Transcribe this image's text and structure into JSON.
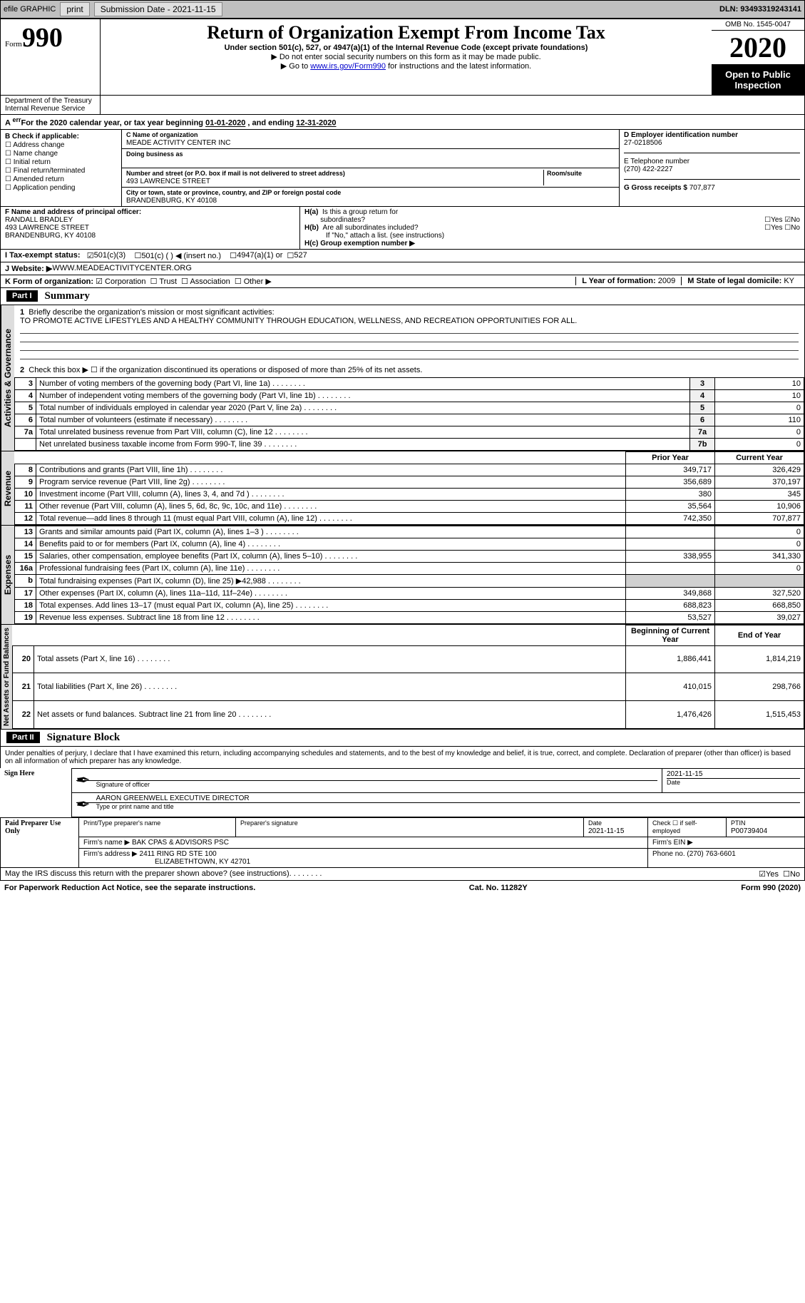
{
  "topbar": {
    "efile": "efile GRAPHIC",
    "print": "print",
    "subdate_label": "Submission Date - ",
    "subdate": "2021-11-15",
    "dln_label": "DLN: ",
    "dln": "93493319243141"
  },
  "header": {
    "form_prefix": "Form",
    "form_no": "990",
    "title": "Return of Organization Exempt From Income Tax",
    "subtitle": "Under section 501(c), 527, or 4947(a)(1) of the Internal Revenue Code (except private foundations)",
    "note1": "▶ Do not enter social security numbers on this form as it may be made public.",
    "note2_pre": "▶ Go to ",
    "note2_link": "www.irs.gov/Form990",
    "note2_post": " for instructions and the latest information.",
    "omb": "OMB No. 1545-0047",
    "year": "2020",
    "open": "Open to Public Inspection",
    "dept": "Department of the Treasury\nInternal Revenue Service"
  },
  "period": {
    "text_a": "For the 2020 calendar year, or tax year beginning ",
    "begin": "01-01-2020",
    "mid": " , and ending ",
    "end": "12-31-2020"
  },
  "colB": {
    "heading": "B Check if applicable:",
    "items": [
      "Address change",
      "Name change",
      "Initial return",
      "Final return/terminated",
      "Amended return",
      "Application pending"
    ]
  },
  "colC": {
    "name_label": "C Name of organization",
    "name": "MEADE ACTIVITY CENTER INC",
    "dba_label": "Doing business as",
    "street_label": "Number and street (or P.O. box if mail is not delivered to street address)",
    "room_label": "Room/suite",
    "street": "493 LAWRENCE STREET",
    "city_label": "City or town, state or province, country, and ZIP or foreign postal code",
    "city": "BRANDENBURG, KY  40108"
  },
  "colD": {
    "ein_label": "D Employer identification number",
    "ein": "27-0218506",
    "phone_label": "E Telephone number",
    "phone": "(270) 422-2227",
    "gross_label": "G Gross receipts $ ",
    "gross": "707,877"
  },
  "sectionF": {
    "label": "F  Name and address of principal officer:",
    "name": "RANDALL BRADLEY",
    "street": "493 LAWRENCE STREET",
    "city": "BRANDENBURG, KY  40108"
  },
  "sectionH": {
    "ha_label": "H(a)  Is this a group return for subordinates?",
    "hb_label": "H(b)  Are all subordinates included?",
    "hb_note": "If \"No,\" attach a list. (see instructions)",
    "hc_label": "H(c)  Group exemption number ▶",
    "yes": "Yes",
    "no": "No"
  },
  "sectionI": {
    "label": "I     Tax-exempt status:",
    "c3": "501(c)(3)",
    "c": "501(c) (  ) ◀ (insert no.)",
    "a1": "4947(a)(1) or",
    "s527": "527"
  },
  "sectionJ": {
    "label": "J    Website: ▶ ",
    "value": "WWW.MEADEACTIVITYCENTER.ORG"
  },
  "sectionK": {
    "label": "K Form of organization:",
    "corp": "Corporation",
    "trust": "Trust",
    "assoc": "Association",
    "other": "Other ▶"
  },
  "sectionL": {
    "label": "L Year of formation: ",
    "value": "2009"
  },
  "sectionM": {
    "label": "M State of legal domicile: ",
    "value": "KY"
  },
  "partI": {
    "num": "Part I",
    "title": "Summary",
    "line1_label": "Briefly describe the organization's mission or most significant activities:",
    "mission": "TO PROMOTE ACTIVE LIFESTYLES AND A HEALTHY COMMUNITY THROUGH EDUCATION, WELLNESS, AND RECREATION OPPORTUNITIES FOR ALL.",
    "line2": "Check this box ▶ ☐  if the organization discontinued its operations or disposed of more than 25% of its net assets.",
    "vtab_gov": "Activities & Governance",
    "vtab_rev": "Revenue",
    "vtab_exp": "Expenses",
    "vtab_net": "Net Assets or Fund Balances",
    "prior_year": "Prior Year",
    "current_year": "Current Year",
    "beg_year": "Beginning of Current Year",
    "end_year": "End of Year",
    "rows_gov": [
      {
        "n": "3",
        "d": "Number of voting members of the governing body (Part VI, line 1a)",
        "idx": "3",
        "v": "10"
      },
      {
        "n": "4",
        "d": "Number of independent voting members of the governing body (Part VI, line 1b)",
        "idx": "4",
        "v": "10"
      },
      {
        "n": "5",
        "d": "Total number of individuals employed in calendar year 2020 (Part V, line 2a)",
        "idx": "5",
        "v": "0"
      },
      {
        "n": "6",
        "d": "Total number of volunteers (estimate if necessary)",
        "idx": "6",
        "v": "110"
      },
      {
        "n": "7a",
        "d": "Total unrelated business revenue from Part VIII, column (C), line 12",
        "idx": "7a",
        "v": "0"
      },
      {
        "n": "",
        "d": "Net unrelated business taxable income from Form 990-T, line 39",
        "idx": "7b",
        "v": "0"
      }
    ],
    "rows_rev": [
      {
        "n": "8",
        "d": "Contributions and grants (Part VIII, line 1h)",
        "py": "349,717",
        "cy": "326,429"
      },
      {
        "n": "9",
        "d": "Program service revenue (Part VIII, line 2g)",
        "py": "356,689",
        "cy": "370,197"
      },
      {
        "n": "10",
        "d": "Investment income (Part VIII, column (A), lines 3, 4, and 7d )",
        "py": "380",
        "cy": "345"
      },
      {
        "n": "11",
        "d": "Other revenue (Part VIII, column (A), lines 5, 6d, 8c, 9c, 10c, and 11e)",
        "py": "35,564",
        "cy": "10,906"
      },
      {
        "n": "12",
        "d": "Total revenue—add lines 8 through 11 (must equal Part VIII, column (A), line 12)",
        "py": "742,350",
        "cy": "707,877"
      }
    ],
    "rows_exp": [
      {
        "n": "13",
        "d": "Grants and similar amounts paid (Part IX, column (A), lines 1–3 )",
        "py": "",
        "cy": "0"
      },
      {
        "n": "14",
        "d": "Benefits paid to or for members (Part IX, column (A), line 4)",
        "py": "",
        "cy": "0"
      },
      {
        "n": "15",
        "d": "Salaries, other compensation, employee benefits (Part IX, column (A), lines 5–10)",
        "py": "338,955",
        "cy": "341,330"
      },
      {
        "n": "16a",
        "d": "Professional fundraising fees (Part IX, column (A), line 11e)",
        "py": "",
        "cy": "0"
      },
      {
        "n": "b",
        "d": "Total fundraising expenses (Part IX, column (D), line 25) ▶42,988",
        "py": "grey",
        "cy": "grey"
      },
      {
        "n": "17",
        "d": "Other expenses (Part IX, column (A), lines 11a–11d, 11f–24e)",
        "py": "349,868",
        "cy": "327,520"
      },
      {
        "n": "18",
        "d": "Total expenses. Add lines 13–17 (must equal Part IX, column (A), line 25)",
        "py": "688,823",
        "cy": "668,850"
      },
      {
        "n": "19",
        "d": "Revenue less expenses. Subtract line 18 from line 12",
        "py": "53,527",
        "cy": "39,027"
      }
    ],
    "rows_net": [
      {
        "n": "20",
        "d": "Total assets (Part X, line 16)",
        "py": "1,886,441",
        "cy": "1,814,219"
      },
      {
        "n": "21",
        "d": "Total liabilities (Part X, line 26)",
        "py": "410,015",
        "cy": "298,766"
      },
      {
        "n": "22",
        "d": "Net assets or fund balances. Subtract line 21 from line 20",
        "py": "1,476,426",
        "cy": "1,515,453"
      }
    ]
  },
  "partII": {
    "num": "Part II",
    "title": "Signature Block",
    "perjury": "Under penalties of perjury, I declare that I have examined this return, including accompanying schedules and statements, and to the best of my knowledge and belief, it is true, correct, and complete. Declaration of preparer (other than officer) is based on all information of which preparer has any knowledge.",
    "sign_here": "Sign Here",
    "sig_officer": "Signature of officer",
    "sig_date": "2021-11-15",
    "date_label": "Date",
    "type_name": "AARON GREENWELL  EXECUTIVE DIRECTOR",
    "type_label": "Type or print name and title",
    "paid": "Paid Preparer Use Only",
    "prep_name_label": "Print/Type preparer's name",
    "prep_sig_label": "Preparer's signature",
    "prep_date_label": "Date",
    "prep_date": "2021-11-15",
    "self_emp": "Check ☐ if self-employed",
    "ptin_label": "PTIN",
    "ptin": "P00739404",
    "firm_name_label": "Firm's name    ▶ ",
    "firm_name": "BAK CPAS & ADVISORS PSC",
    "firm_ein_label": "Firm's EIN ▶",
    "firm_addr_label": "Firm's address ▶ ",
    "firm_addr1": "2411 RING RD STE 100",
    "firm_addr2": "ELIZABETHTOWN, KY  42701",
    "firm_phone_label": "Phone no. ",
    "firm_phone": "(270) 763-6601",
    "discuss": "May the IRS discuss this return with the preparer shown above? (see instructions)",
    "yes": "Yes",
    "no": "No"
  },
  "footer": {
    "left": "For Paperwork Reduction Act Notice, see the separate instructions.",
    "mid": "Cat. No. 11282Y",
    "right": "Form 990 (2020)"
  }
}
